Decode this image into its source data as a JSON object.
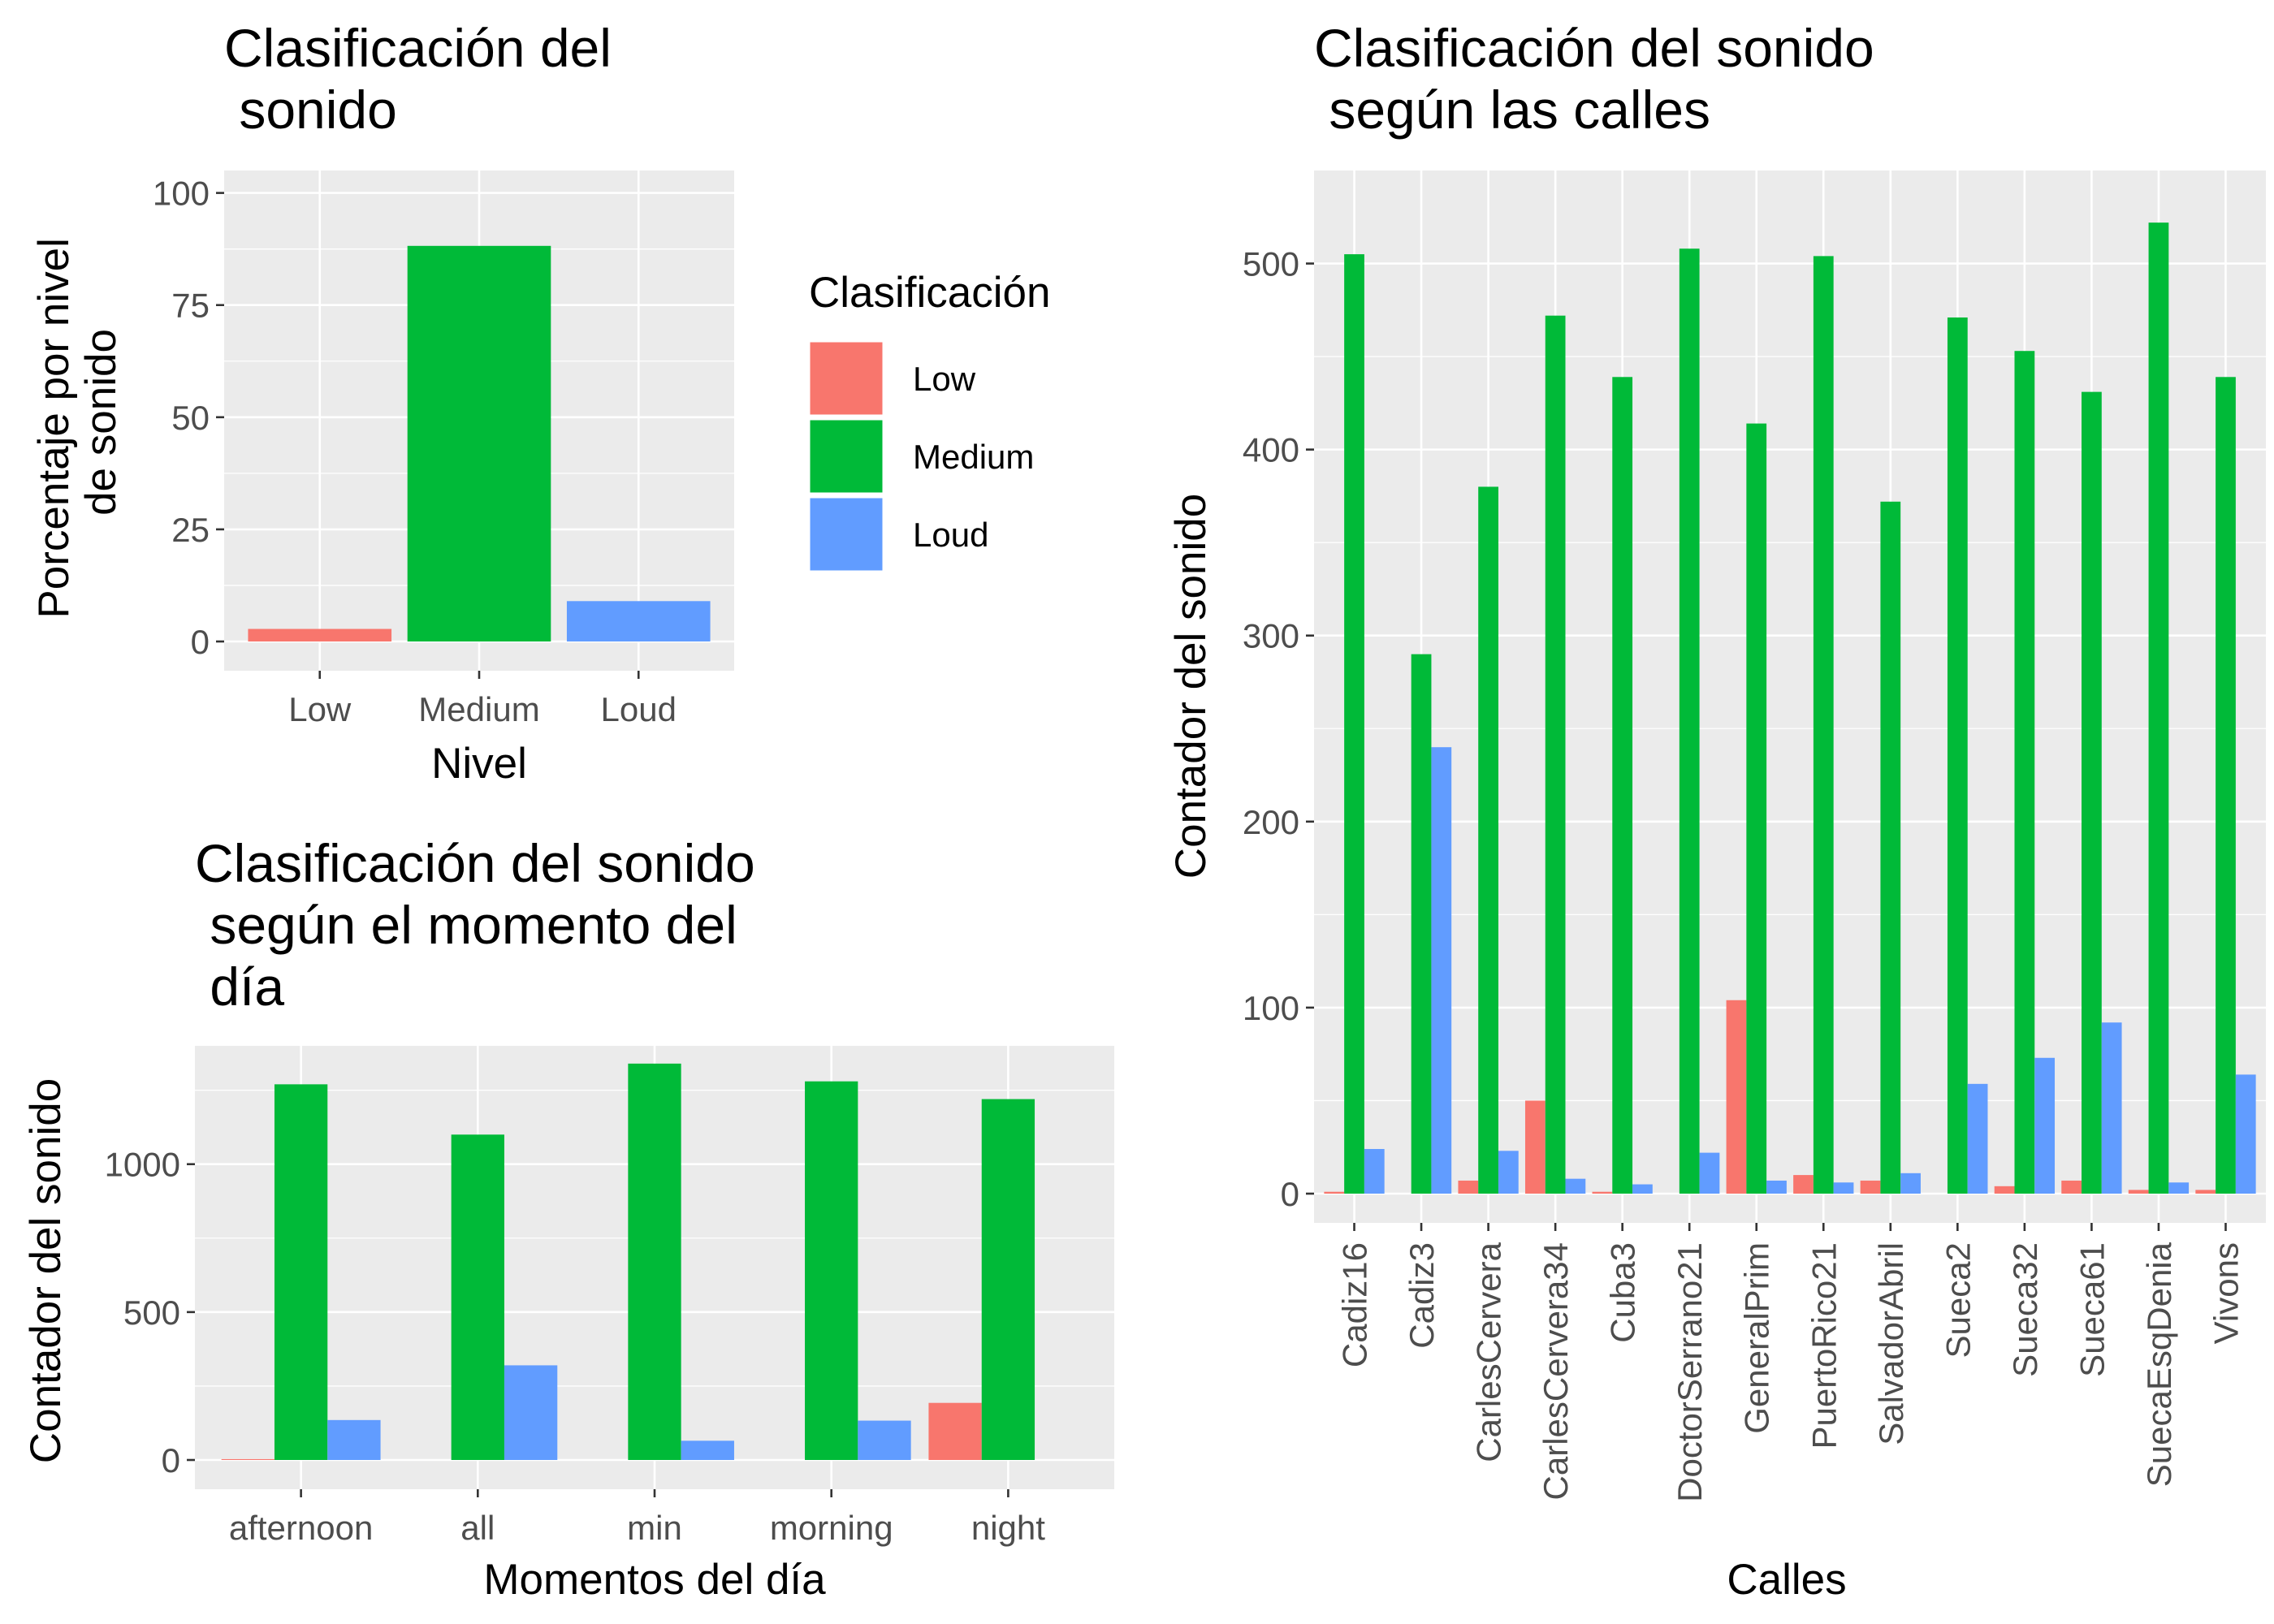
{
  "colors": {
    "Low": "#F8766D",
    "Medium": "#00BA38",
    "Loud": "#619CFF"
  },
  "legend": {
    "title": "Clasificación",
    "items": [
      {
        "label": "Low",
        "color": "#F8766D"
      },
      {
        "label": "Medium",
        "color": "#00BA38"
      },
      {
        "label": "Loud",
        "color": "#619CFF"
      }
    ]
  },
  "chart_data": [
    {
      "id": "nivel",
      "type": "bar",
      "title_lines": [
        "Clasificación del",
        " sonido"
      ],
      "xlabel": "Nivel",
      "ylabel_lines": [
        "Porcentaje por nivel",
        "de sonido"
      ],
      "categories": [
        "Low",
        "Medium",
        "Loud"
      ],
      "values": [
        2.8,
        88.2,
        9.0
      ],
      "ylim": [
        0,
        105
      ],
      "yticks": [
        0,
        25,
        50,
        75,
        100
      ],
      "grid": true,
      "legend": "none"
    },
    {
      "id": "momento",
      "type": "bar",
      "title_lines": [
        "Clasificación del sonido",
        " según el momento del",
        " día"
      ],
      "xlabel": "Momentos del día",
      "ylabel_lines": [
        "Contador del sonido"
      ],
      "categories": [
        "afternoon",
        "all",
        "min",
        "morning",
        "night"
      ],
      "series": [
        {
          "name": "Low",
          "values": [
            3,
            0,
            0,
            0,
            193
          ]
        },
        {
          "name": "Medium",
          "values": [
            1270,
            1100,
            1340,
            1280,
            1220
          ]
        },
        {
          "name": "Loud",
          "values": [
            135,
            320,
            65,
            133,
            0
          ]
        }
      ],
      "ylim": [
        0,
        1400
      ],
      "yticks": [
        0,
        500,
        1000
      ],
      "grid": true,
      "legend": "none"
    },
    {
      "id": "calles",
      "type": "bar",
      "title_lines": [
        "Clasificación del sonido",
        " según las calles"
      ],
      "xlabel": "Calles",
      "ylabel_lines": [
        "Contador del sonido"
      ],
      "categories": [
        "Cadiz16",
        "Cadiz3",
        "CarlesCervera",
        "CarlesCervera34",
        "Cuba3",
        "DoctorSerrano21",
        "GeneralPrim",
        "PuertoRico21",
        "SalvadorAbril",
        "Sueca2",
        "Sueca32",
        "Sueca61",
        "SuecaEsqDenia",
        "Vivons"
      ],
      "series": [
        {
          "name": "Low",
          "values": [
            1,
            0,
            7,
            50,
            1,
            0,
            104,
            10,
            7,
            0,
            4,
            7,
            2,
            2
          ]
        },
        {
          "name": "Medium",
          "values": [
            505,
            290,
            380,
            472,
            439,
            508,
            414,
            504,
            372,
            471,
            453,
            431,
            522,
            439
          ]
        },
        {
          "name": "Loud",
          "values": [
            24,
            240,
            23,
            8,
            5,
            22,
            7,
            6,
            11,
            59,
            73,
            92,
            6,
            64
          ]
        }
      ],
      "ylim": [
        0,
        550
      ],
      "yticks": [
        0,
        100,
        200,
        300,
        400,
        500
      ],
      "grid": true,
      "legend": "none"
    }
  ]
}
